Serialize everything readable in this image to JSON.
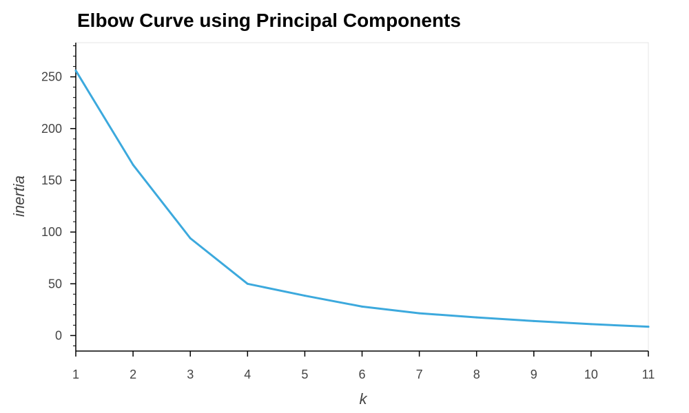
{
  "chart_data": {
    "type": "line",
    "title": "Elbow Curve using Principal Components",
    "xlabel": "k",
    "ylabel": "inertia",
    "x": [
      1,
      2,
      3,
      4,
      5,
      6,
      7,
      8,
      9,
      10,
      11
    ],
    "series": [
      {
        "values": [
          256,
          165,
          94,
          50,
          38.5,
          28,
          21.5,
          17.5,
          14,
          11,
          8.5
        ]
      }
    ],
    "xlim": [
      1,
      11
    ],
    "ylim": [
      -15,
      283
    ],
    "x_ticks": [
      1,
      2,
      3,
      4,
      5,
      6,
      7,
      8,
      9,
      10,
      11
    ],
    "y_ticks": [
      0,
      50,
      100,
      150,
      200,
      250
    ],
    "grid": false,
    "legend": "none",
    "line_color": "#3ca9dd",
    "outline_color": "#e5e5e5",
    "axis_color": "#000000"
  }
}
